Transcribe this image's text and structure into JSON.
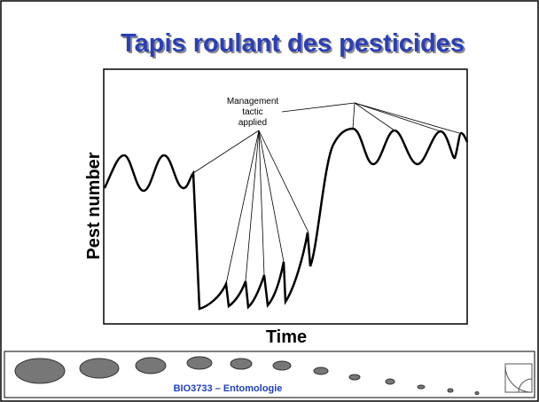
{
  "header": {
    "title": "Tapis roulant des pesticides"
  },
  "diagram": {
    "y_label": "Pest number",
    "x_label": "Time",
    "annotation": [
      "Management",
      "tactic",
      "applied"
    ]
  },
  "footer": {
    "text": "BIO3733 – Entomologie"
  }
}
